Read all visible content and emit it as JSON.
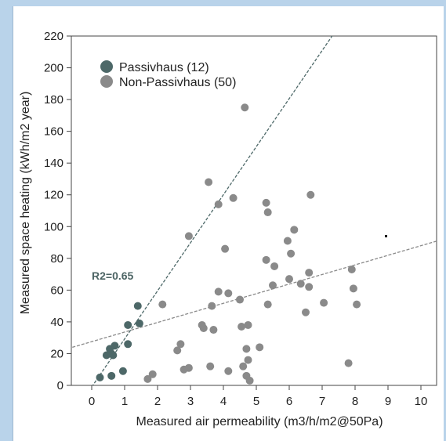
{
  "chart_data": {
    "type": "scatter",
    "xlabel": "Measured air permeability (m3/h/m2@50Pa)",
    "ylabel": "Measured space heating (kWh/m2 year)",
    "xlim": [
      -1,
      11
    ],
    "ylim": [
      0,
      220
    ],
    "xticks": [
      0,
      1,
      2,
      3,
      4,
      5,
      6,
      7,
      8,
      9,
      10
    ],
    "yticks": [
      0,
      20,
      40,
      60,
      80,
      100,
      120,
      140,
      160,
      180,
      200,
      220
    ],
    "grid": false,
    "legend_position": "top-left",
    "annotation": "R2=0.65",
    "series": [
      {
        "name": "Passivhaus (12)",
        "color": "#4d6868",
        "points": [
          [
            0.25,
            5
          ],
          [
            0.45,
            19
          ],
          [
            0.55,
            23
          ],
          [
            0.6,
            6
          ],
          [
            0.65,
            19
          ],
          [
            0.7,
            25
          ],
          [
            0.95,
            9
          ],
          [
            1.1,
            38
          ],
          [
            1.1,
            26
          ],
          [
            1.4,
            50
          ],
          [
            1.45,
            39
          ],
          [
            0.6,
            20
          ]
        ]
      },
      {
        "name": "Non-Passivhaus (50)",
        "color": "#8a8a8a",
        "points": [
          [
            1.7,
            4
          ],
          [
            1.85,
            7
          ],
          [
            2.15,
            51
          ],
          [
            2.6,
            22
          ],
          [
            2.7,
            26
          ],
          [
            2.8,
            10
          ],
          [
            2.95,
            94
          ],
          [
            2.95,
            11
          ],
          [
            3.35,
            38
          ],
          [
            3.4,
            36
          ],
          [
            3.55,
            128
          ],
          [
            3.6,
            12
          ],
          [
            3.65,
            50
          ],
          [
            3.7,
            35
          ],
          [
            3.85,
            114
          ],
          [
            3.85,
            59
          ],
          [
            4.05,
            86
          ],
          [
            4.15,
            58
          ],
          [
            4.15,
            9
          ],
          [
            4.3,
            118
          ],
          [
            4.5,
            54
          ],
          [
            4.55,
            37
          ],
          [
            4.6,
            12
          ],
          [
            4.65,
            175
          ],
          [
            4.7,
            6
          ],
          [
            4.7,
            23
          ],
          [
            4.75,
            16
          ],
          [
            4.75,
            38
          ],
          [
            4.8,
            3
          ],
          [
            5.1,
            24
          ],
          [
            5.3,
            115
          ],
          [
            5.35,
            109
          ],
          [
            5.3,
            79
          ],
          [
            5.35,
            51
          ],
          [
            5.5,
            63
          ],
          [
            5.55,
            75
          ],
          [
            5.95,
            91
          ],
          [
            6.0,
            67
          ],
          [
            6.05,
            83
          ],
          [
            6.15,
            98
          ],
          [
            6.35,
            64
          ],
          [
            6.5,
            46
          ],
          [
            6.6,
            62
          ],
          [
            6.6,
            71
          ],
          [
            6.65,
            120
          ],
          [
            7.05,
            52
          ],
          [
            7.8,
            14
          ],
          [
            7.9,
            73
          ],
          [
            7.95,
            61
          ],
          [
            8.05,
            51
          ]
        ]
      }
    ],
    "trendlines": [
      {
        "series": "Passivhaus (12)",
        "style": "dashed",
        "color": "#4d6868",
        "from": [
          0,
          -1
        ],
        "to": [
          7.5,
          226
        ]
      },
      {
        "series": "Non-Passivhaus (50)",
        "style": "dashed",
        "color": "#8a8a8a",
        "from": [
          -1,
          21.5
        ],
        "to": [
          11,
          94
        ]
      }
    ]
  }
}
